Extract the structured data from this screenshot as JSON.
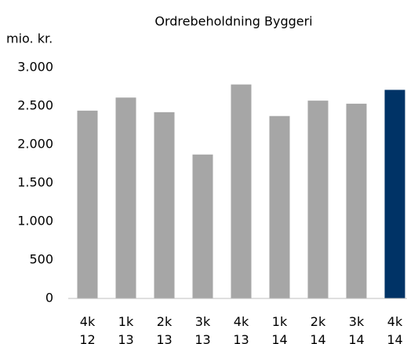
{
  "chart_data": {
    "type": "bar",
    "title": "Ordrebeholdning Byggeri",
    "y_label": "mio. kr.",
    "categories": [
      "4k 12",
      "1k 13",
      "2k 13",
      "3k 13",
      "4k 13",
      "1k 14",
      "2k 14",
      "3k 14",
      "4k 14"
    ],
    "values": [
      2440,
      2610,
      2420,
      1870,
      2780,
      2370,
      2570,
      2530,
      2710
    ],
    "colors": [
      "#a6a6a6",
      "#a6a6a6",
      "#a6a6a6",
      "#a6a6a6",
      "#a6a6a6",
      "#a6a6a6",
      "#a6a6a6",
      "#a6a6a6",
      "#003366"
    ],
    "ylim": [
      0,
      3000
    ],
    "yticks": [
      0,
      500,
      {
        "value": 1000,
        "label": "1.000"
      },
      {
        "value": 1500,
        "label": "1.500"
      },
      {
        "value": 2000,
        "label": "2.000"
      },
      {
        "value": 2500,
        "label": "2.500"
      },
      {
        "value": 3000,
        "label": "3.000"
      }
    ],
    "grid": false
  }
}
